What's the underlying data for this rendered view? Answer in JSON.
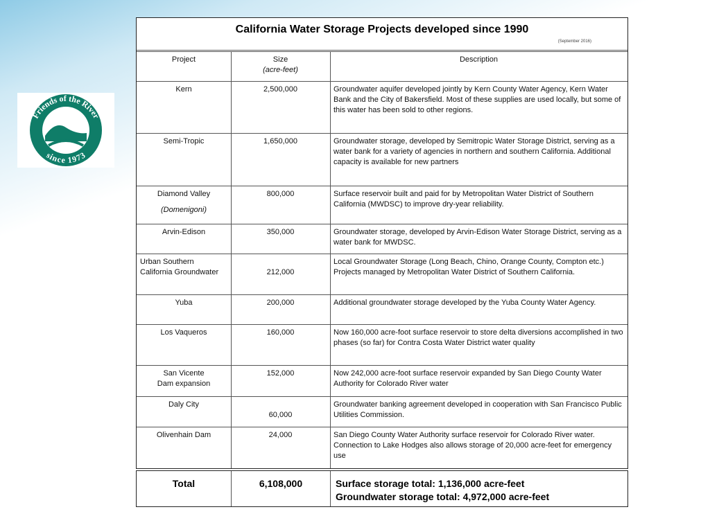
{
  "title": "California Water Storage Projects developed since 1990",
  "date_note": "(September 2016)",
  "logo": {
    "top": "Friends of the River",
    "bottom": "since 1973"
  },
  "table": {
    "headers": {
      "project": "Project",
      "size": "Size",
      "size_unit": "(acre-feet)",
      "description": "Description"
    },
    "rows": [
      {
        "project": "Kern",
        "size": "2,500,000",
        "description": "Groundwater aquifer developed jointly by Kern County Water Agency, Kern Water Bank and the City of Bakersfield. Most of these supplies are used locally, but some of this water has been sold to other regions."
      },
      {
        "project": "Semi-Tropic",
        "size": "1,650,000",
        "description": "Groundwater storage, developed by Semitropic Water Storage District, serving as a water bank for a variety of agencies in northern and southern California. Additional capacity is available for new partners"
      },
      {
        "project": "Diamond Valley",
        "project_note": "(Domenigoni)",
        "size": "800,000",
        "description": "Surface reservoir built and paid for by Metropolitan Water District of Southern California (MWDSC) to improve dry-year reliability."
      },
      {
        "project": "Arvin-Edison",
        "size": "350,000",
        "description": "Groundwater storage, developed by Arvin-Edison Water Storage District, serving as a water bank for MWDSC."
      },
      {
        "project": "Urban Southern\nCalifornia Groundwater",
        "size": "212,000",
        "description": "Local Groundwater Storage (Long Beach, Chino, Orange County, Compton etc.) Projects managed by Metropolitan Water District of Southern California."
      },
      {
        "project": "Yuba",
        "size": "200,000",
        "description": "Additional groundwater storage developed by the Yuba County Water Agency."
      },
      {
        "project": "Los Vaqueros",
        "size": "160,000",
        "description": "Now 160,000 acre-foot surface reservoir to store delta diversions accomplished in two phases (so far) for Contra Costa Water District water quality"
      },
      {
        "project": "San Vicente\nDam expansion",
        "size": "152,000",
        "description": "Now 242,000 acre-foot surface reservoir expanded by San Diego County Water Authority for Colorado River water"
      },
      {
        "project": "Daly City",
        "size": "60,000",
        "description": "Groundwater banking agreement developed in cooperation with San Francisco Public Utilities Commission."
      },
      {
        "project": "Olivenhain Dam",
        "size": "24,000",
        "description": "San Diego County Water Authority surface reservoir for Colorado River water. Connection to Lake Hodges also allows storage of 20,000 acre-feet for emergency use"
      }
    ],
    "total": {
      "label": "Total",
      "size": "6,108,000",
      "surface": "Surface storage total: 1,136,000 acre-feet",
      "groundwater": "Groundwater storage total: 4,972,000 acre-feet"
    }
  }
}
